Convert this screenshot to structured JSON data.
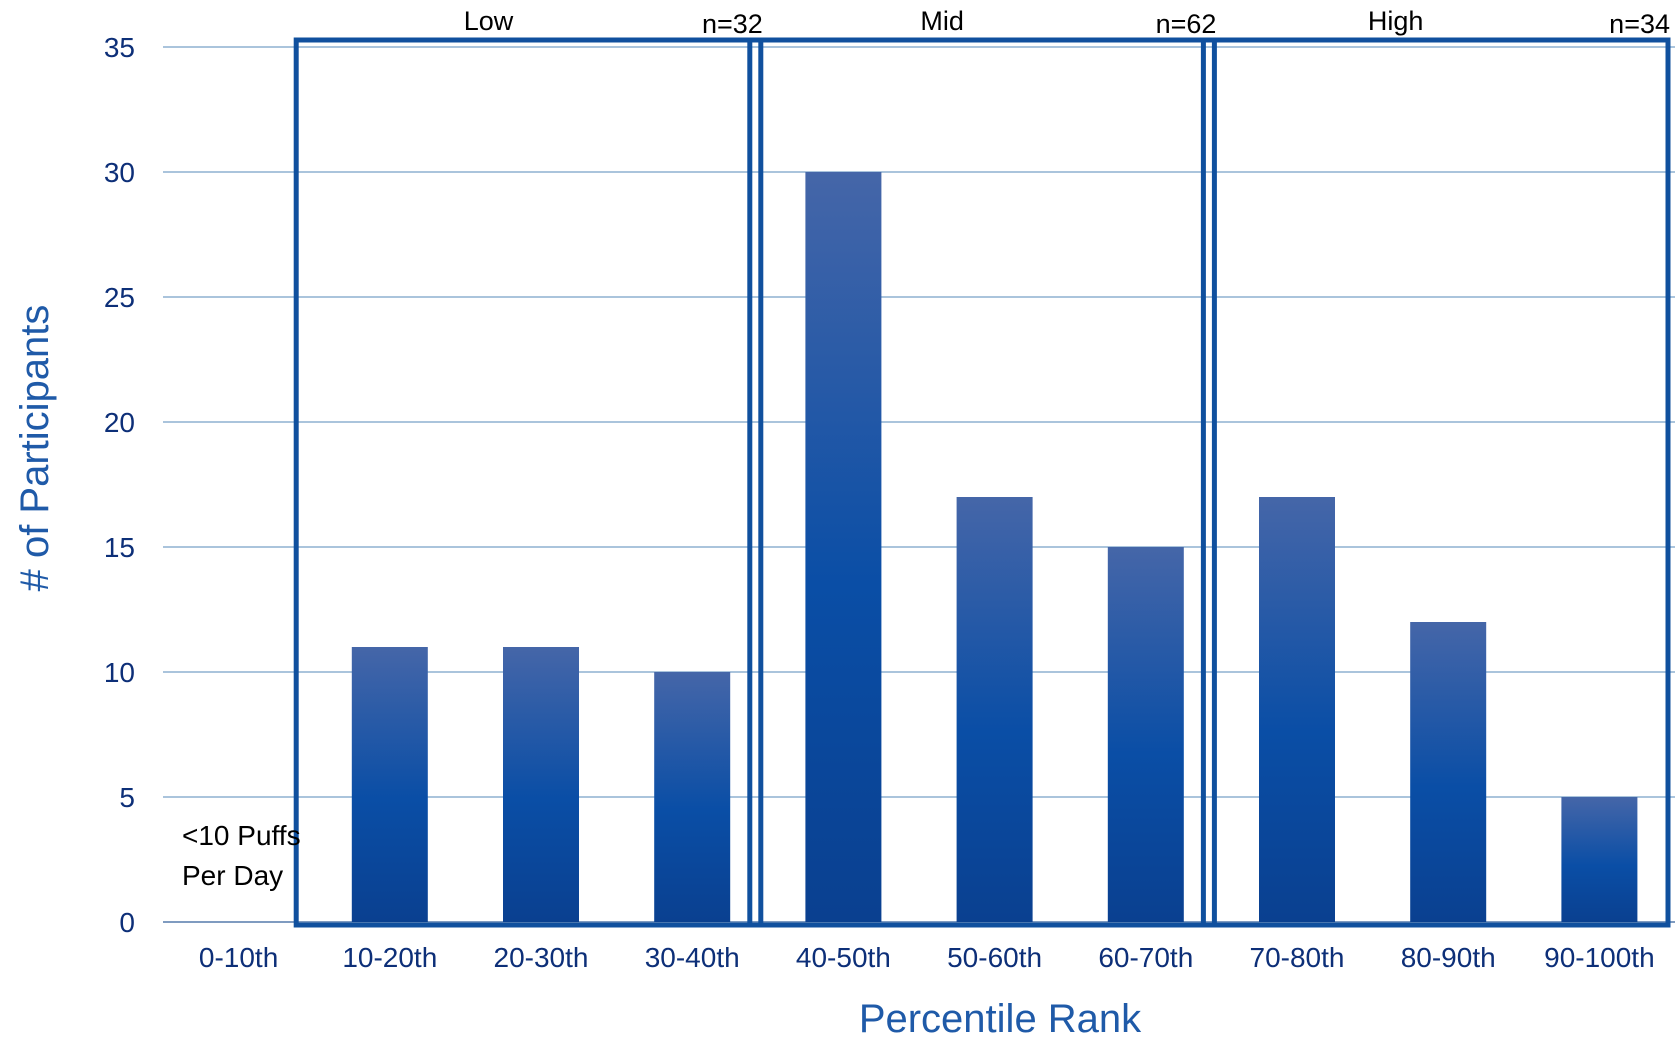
{
  "chart_data": {
    "type": "bar",
    "title": "",
    "xlabel": "Percentile Rank",
    "ylabel": "# of Participants",
    "categories": [
      "0-10th",
      "10-20th",
      "20-30th",
      "30-40th",
      "40-50th",
      "50-60th",
      "60-70th",
      "70-80th",
      "80-90th",
      "90-100th"
    ],
    "values": [
      0,
      11,
      11,
      10,
      30,
      17,
      15,
      17,
      12,
      5
    ],
    "ylim": [
      0,
      35
    ],
    "yticks": [
      "0",
      "5",
      "10",
      "15",
      "20",
      "25",
      "30",
      "35"
    ],
    "grid": true,
    "bar_color_top": "#4566a8",
    "bar_color_bottom": "#0a4a9c",
    "grid_color": "#aac4dc",
    "box_color": "#10509e",
    "groups": [
      {
        "label": "Low",
        "n": "n=32",
        "start": 1,
        "end": 3
      },
      {
        "label": "Mid",
        "n": "n=62",
        "start": 4,
        "end": 6
      },
      {
        "label": "High",
        "n": "n=34",
        "start": 7,
        "end": 9
      }
    ],
    "annotation": [
      "<10 Puffs",
      "Per Day"
    ]
  }
}
